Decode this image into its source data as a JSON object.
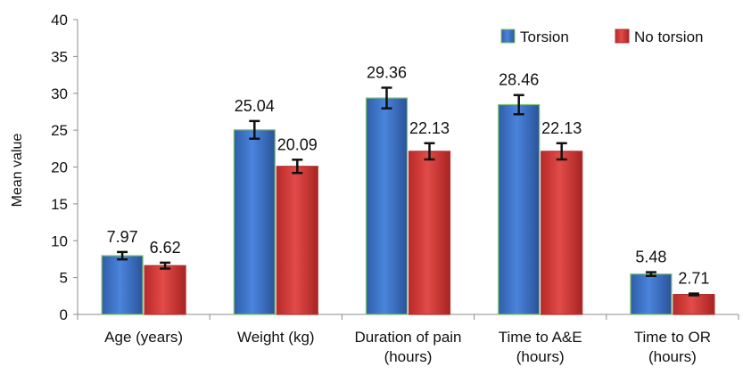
{
  "chart_data": {
    "type": "bar",
    "title": "",
    "xlabel": "",
    "ylabel": "Mean value",
    "ylim": [
      0,
      40
    ],
    "yticks": [
      "0",
      "5",
      "10",
      "15",
      "20",
      "25",
      "30",
      "35",
      "40"
    ],
    "grid": false,
    "legend_position": "top-right",
    "categories": [
      [
        "Age (years)"
      ],
      [
        "Weight (kg)"
      ],
      [
        "Duration of pain",
        "(hours)"
      ],
      [
        "Time to A&E",
        "(hours)"
      ],
      [
        "Time to OR",
        "(hours)"
      ]
    ],
    "series": [
      {
        "name": "Torsion",
        "color": "#3b6fc6",
        "values": [
          7.97,
          25.04,
          29.36,
          28.46,
          5.48
        ],
        "labels": [
          "7.97",
          "25.04",
          "29.36",
          "28.46",
          "5.48"
        ],
        "error": [
          0.5,
          1.2,
          1.4,
          1.3,
          0.25
        ]
      },
      {
        "name": "No torsion",
        "color": "#d63a38",
        "values": [
          6.62,
          20.09,
          22.13,
          22.13,
          2.71
        ],
        "labels": [
          "6.62",
          "20.09",
          "22.13",
          "22.13",
          "2.71"
        ],
        "error": [
          0.4,
          0.9,
          1.1,
          1.1,
          0.12
        ]
      }
    ]
  }
}
